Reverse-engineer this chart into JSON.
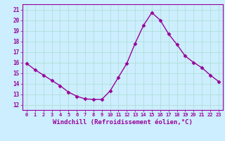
{
  "x": [
    0,
    1,
    2,
    3,
    4,
    5,
    6,
    7,
    8,
    9,
    10,
    11,
    12,
    13,
    14,
    15,
    16,
    17,
    18,
    19,
    20,
    21,
    22,
    23
  ],
  "y": [
    15.9,
    15.3,
    14.8,
    14.3,
    13.8,
    13.2,
    12.8,
    12.55,
    12.5,
    12.5,
    13.3,
    14.6,
    15.9,
    17.8,
    19.5,
    20.7,
    20.0,
    18.7,
    17.7,
    16.6,
    16.0,
    15.5,
    14.8,
    14.2
  ],
  "line_color": "#990099",
  "marker": "D",
  "markersize": 2.5,
  "linewidth": 1,
  "xlabel": "Windchill (Refroidissement éolien,°C)",
  "xlabel_fontsize": 6.5,
  "ylabel_ticks": [
    12,
    13,
    14,
    15,
    16,
    17,
    18,
    19,
    20,
    21
  ],
  "xtick_labels": [
    "0",
    "1",
    "2",
    "3",
    "4",
    "5",
    "6",
    "7",
    "8",
    "9",
    "10",
    "11",
    "12",
    "13",
    "14",
    "15",
    "16",
    "17",
    "18",
    "19",
    "20",
    "21",
    "22",
    "23"
  ],
  "ylim": [
    11.5,
    21.5
  ],
  "xlim": [
    -0.5,
    23.5
  ],
  "bg_color": "#cceeff",
  "grid_color": "#aaddcc",
  "tick_color": "#990099",
  "spine_color": "#990099"
}
